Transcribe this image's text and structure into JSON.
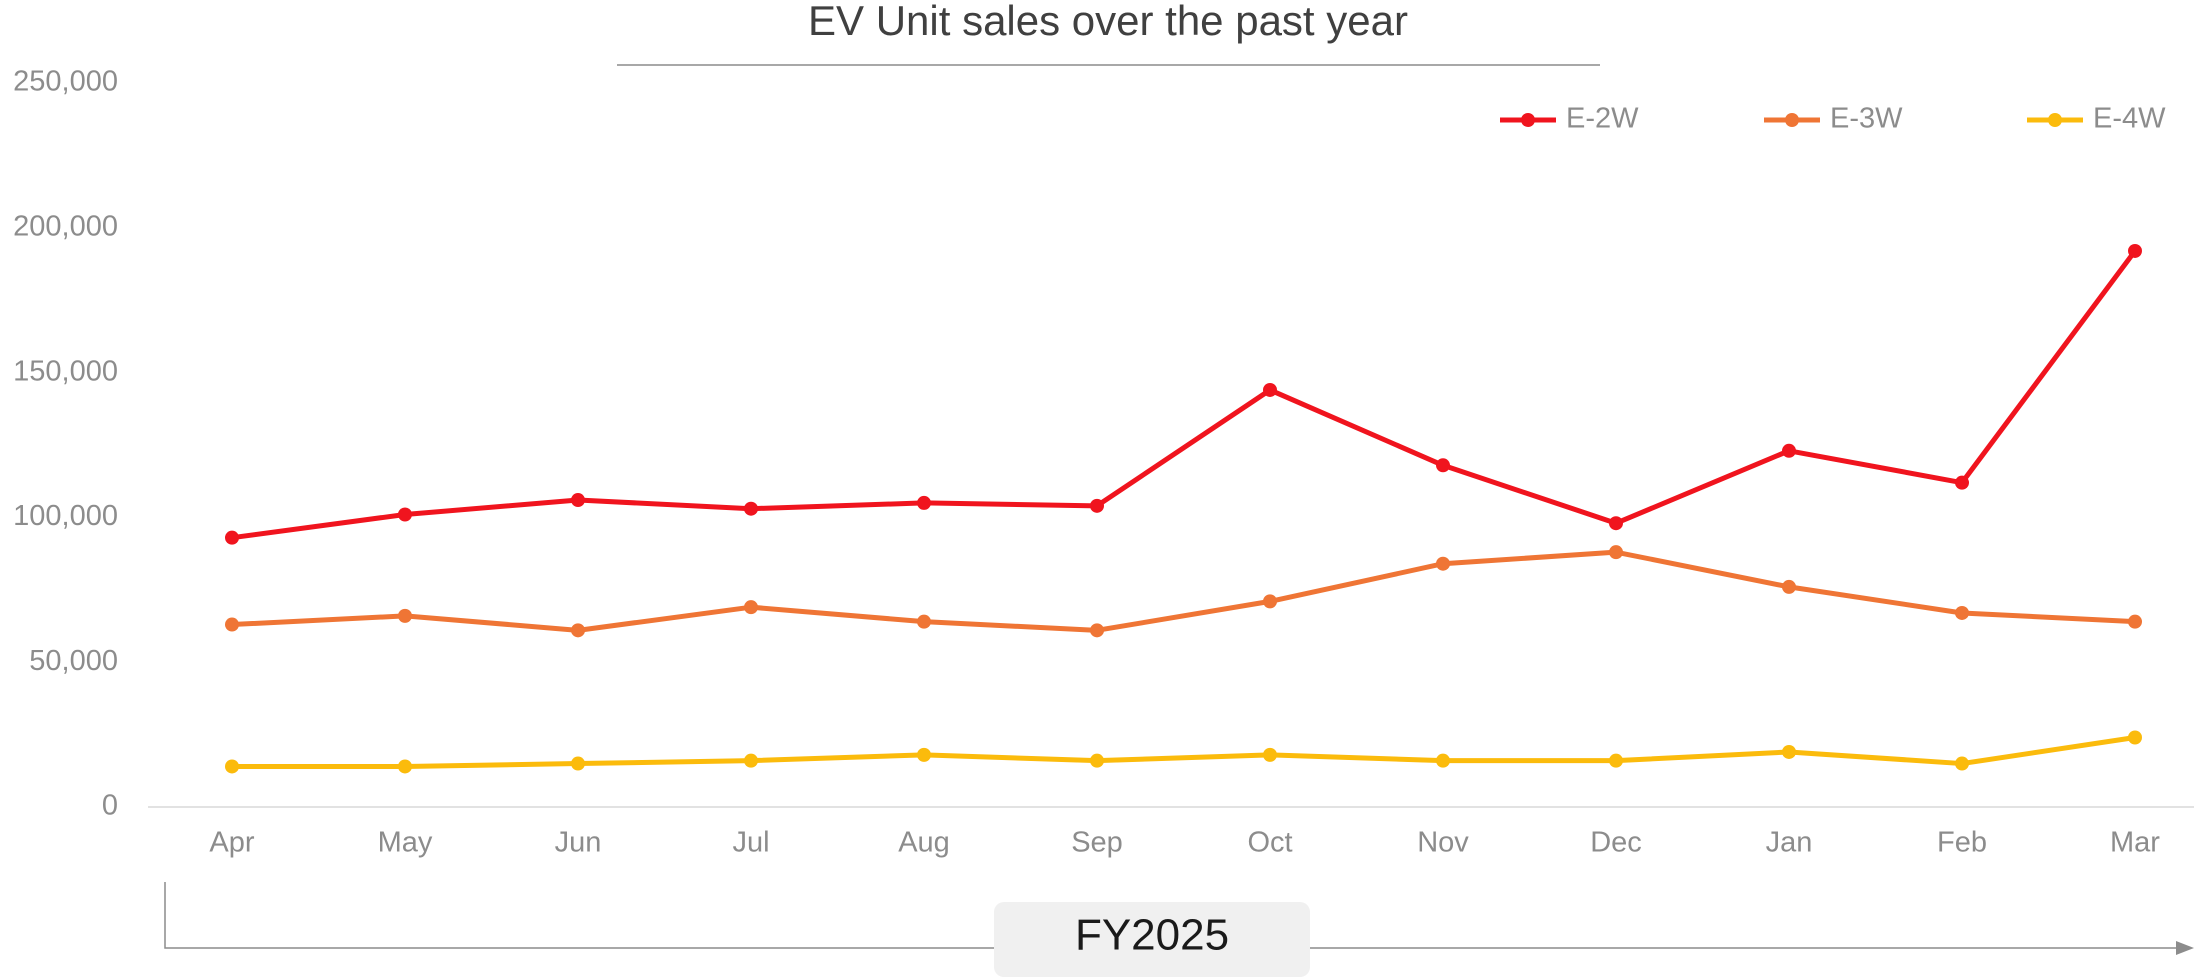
{
  "chart_data": {
    "type": "line",
    "title": "EV Unit sales over the past year",
    "xlabel": "FY2025",
    "categories": [
      "Apr",
      "May",
      "Jun",
      "Jul",
      "Aug",
      "Sep",
      "Oct",
      "Nov",
      "Dec",
      "Jan",
      "Feb",
      "Mar"
    ],
    "series": [
      {
        "name": "E-2W",
        "color": "#f0141e",
        "values": [
          93000,
          101000,
          106000,
          103000,
          105000,
          104000,
          144000,
          118000,
          98000,
          123000,
          112000,
          192000
        ]
      },
      {
        "name": "E-3W",
        "color": "#ef7535",
        "values": [
          63000,
          66000,
          61000,
          69000,
          64000,
          61000,
          71000,
          84000,
          88000,
          76000,
          67000,
          64000
        ]
      },
      {
        "name": "E-4W",
        "color": "#fbbb0c",
        "values": [
          14000,
          14000,
          15000,
          16000,
          18000,
          16000,
          18000,
          16000,
          16000,
          19000,
          15000,
          24000
        ]
      }
    ],
    "ylim": [
      0,
      250000
    ],
    "yticks": [
      0,
      {
        "value": 50000,
        "label": "50,000"
      },
      {
        "value": 100000,
        "label": "100,000"
      },
      {
        "value": 150000,
        "label": "150,000"
      },
      {
        "value": 200000,
        "label": "200,000"
      },
      {
        "value": 250000,
        "label": "250,000"
      }
    ],
    "grid": false,
    "legend": "top-right"
  }
}
